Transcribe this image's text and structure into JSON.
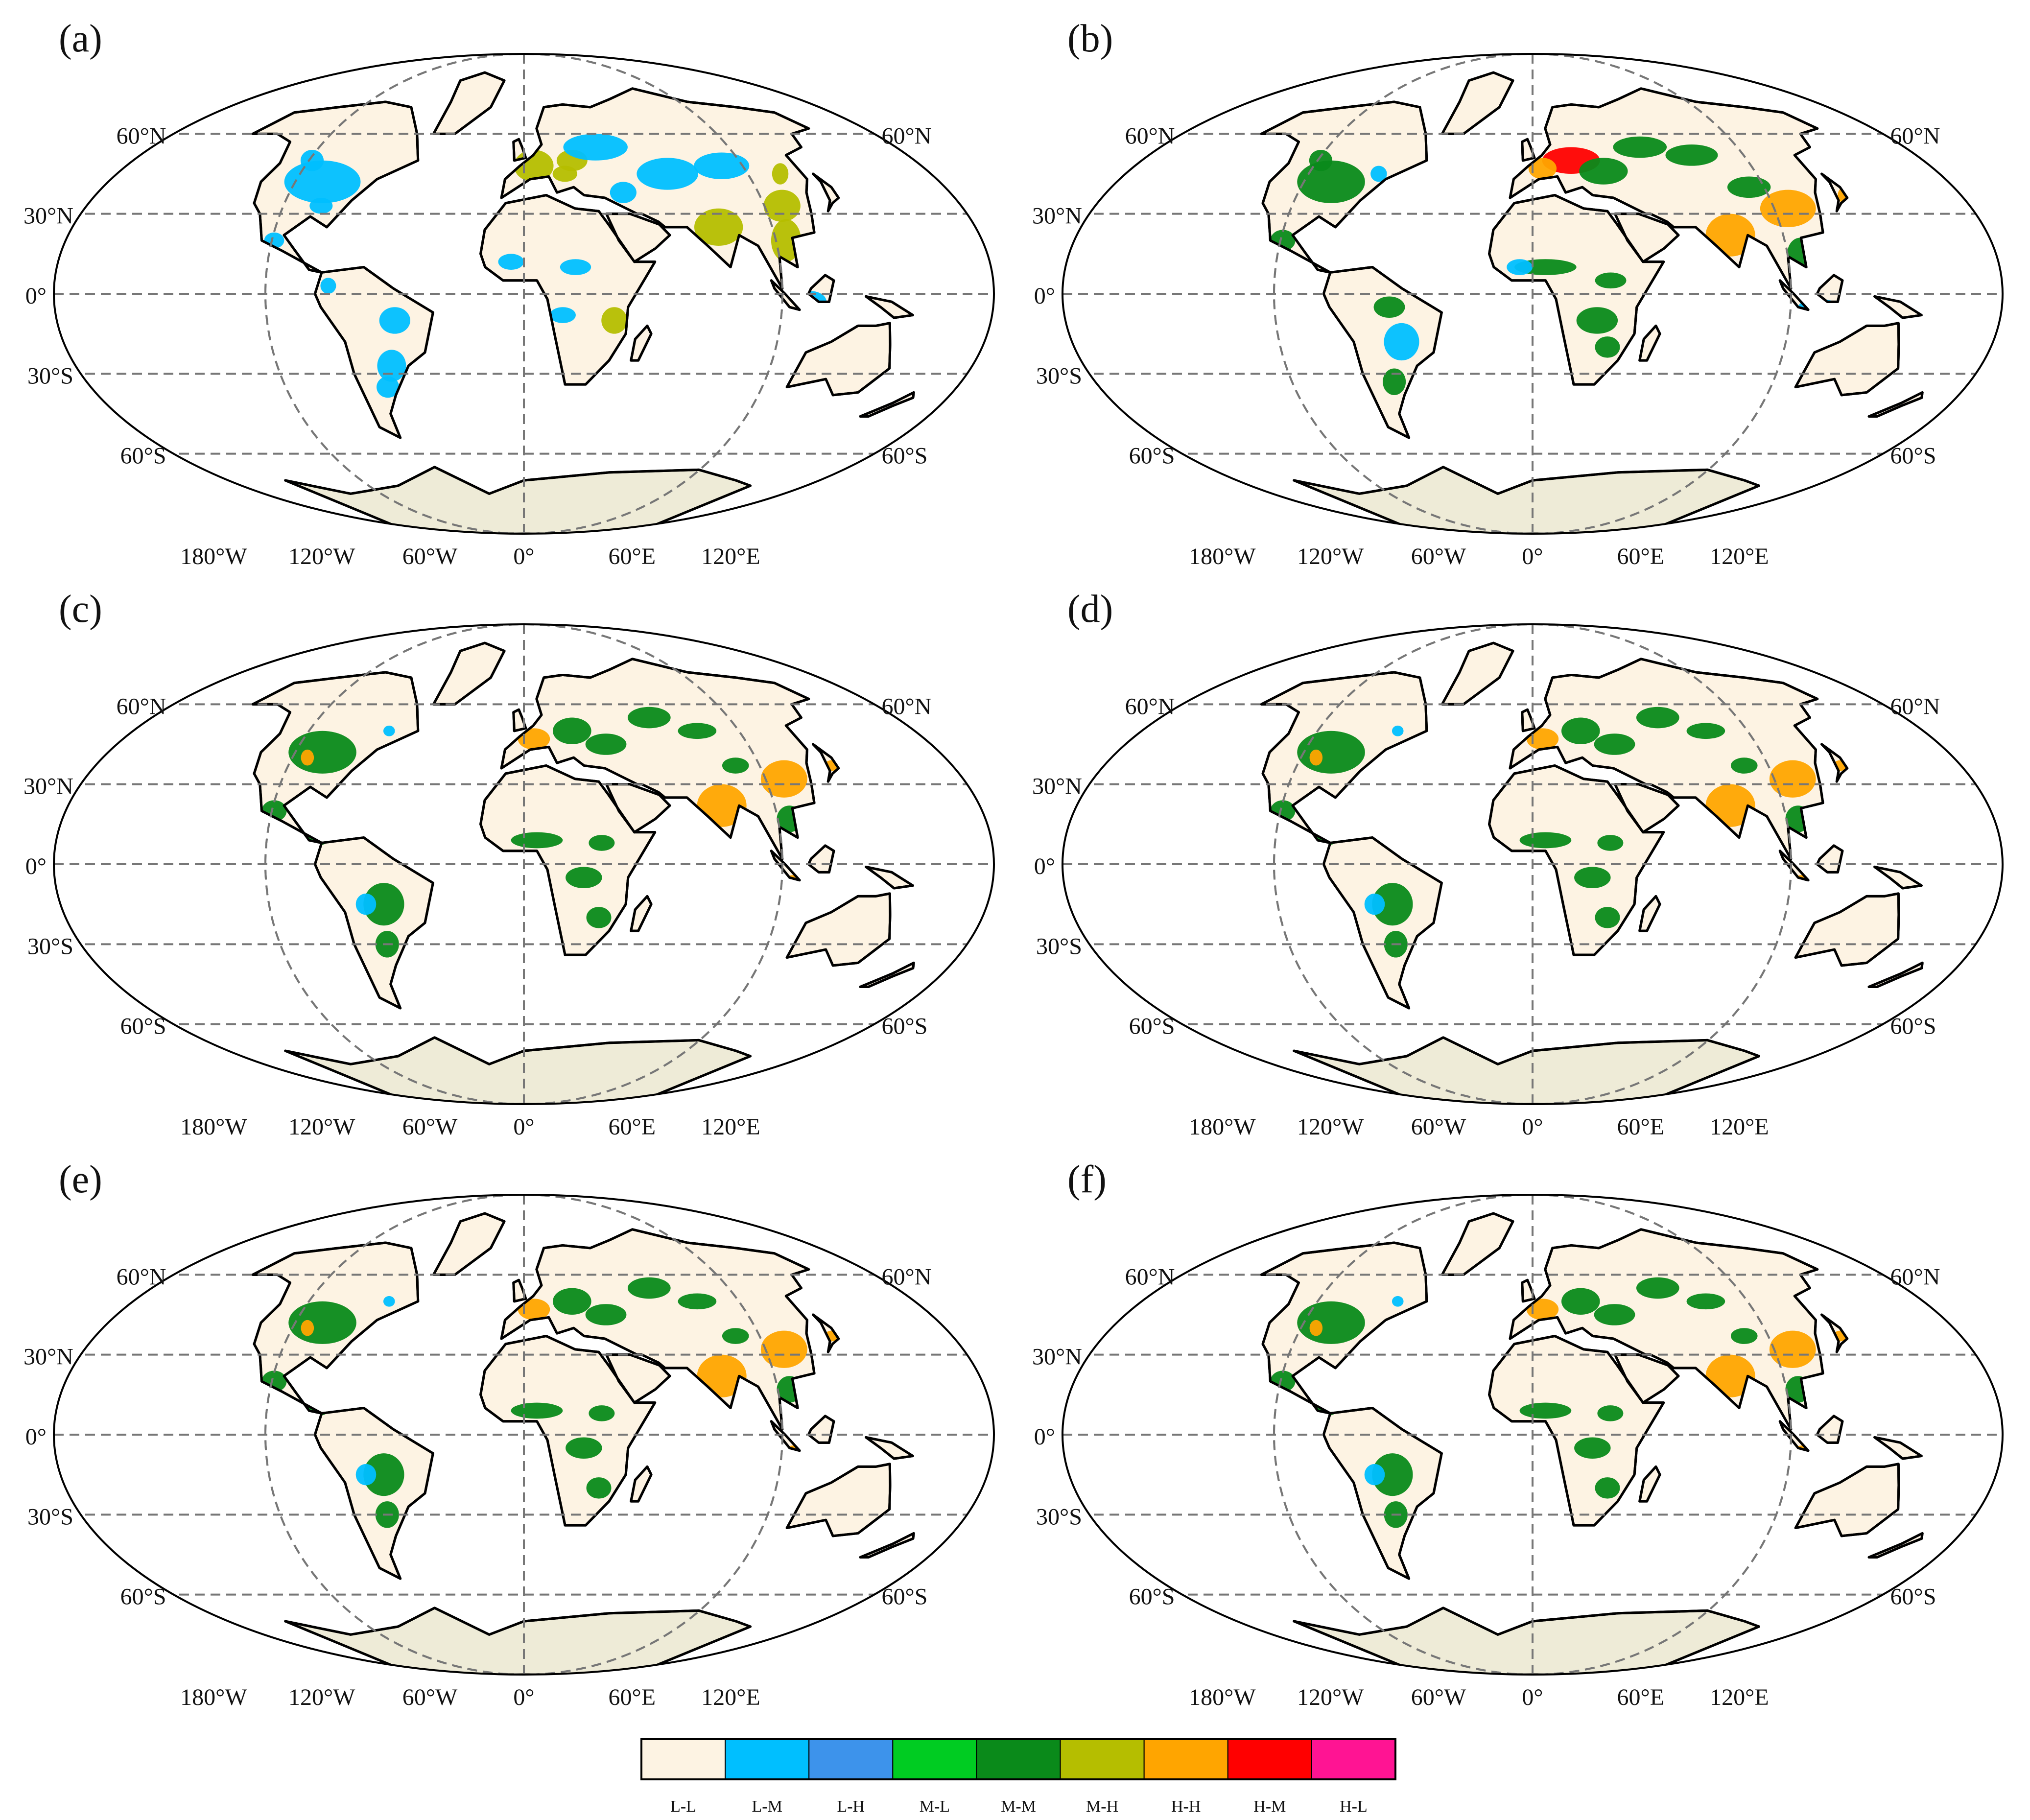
{
  "panels": [
    {
      "label": "(a)",
      "highlight": "lm"
    },
    {
      "label": "(b)",
      "highlight": "hh_b"
    },
    {
      "label": "(c)",
      "highlight": "hh"
    },
    {
      "label": "(d)",
      "highlight": "hh"
    },
    {
      "label": "(e)",
      "highlight": "hh"
    },
    {
      "label": "(f)",
      "highlight": "hh"
    }
  ],
  "lat_labels": [
    "60°N",
    "30°N",
    "0°",
    "30°S",
    "60°S"
  ],
  "lon_labels": [
    "180°W",
    "120°W",
    "60°W",
    "0°",
    "60°E",
    "120°E"
  ],
  "legend": [
    {
      "label": "L-L",
      "color": "#fdf3e3"
    },
    {
      "label": "L-M",
      "color": "#00bfff"
    },
    {
      "label": "L-H",
      "color": "#3d93eb"
    },
    {
      "label": "M-L",
      "color": "#00cc22"
    },
    {
      "label": "M-M",
      "color": "#0a8a1a"
    },
    {
      "label": "M-H",
      "color": "#b5be00"
    },
    {
      "label": "H-H",
      "color": "#ffa500"
    },
    {
      "label": "H-M",
      "color": "#ff0000"
    },
    {
      "label": "H-L",
      "color": "#ff1493"
    }
  ],
  "colors": {
    "land": "#fdf3e3",
    "antarctica": "#eeebd7",
    "ocean": "#ffffff",
    "grid": "#777777"
  }
}
